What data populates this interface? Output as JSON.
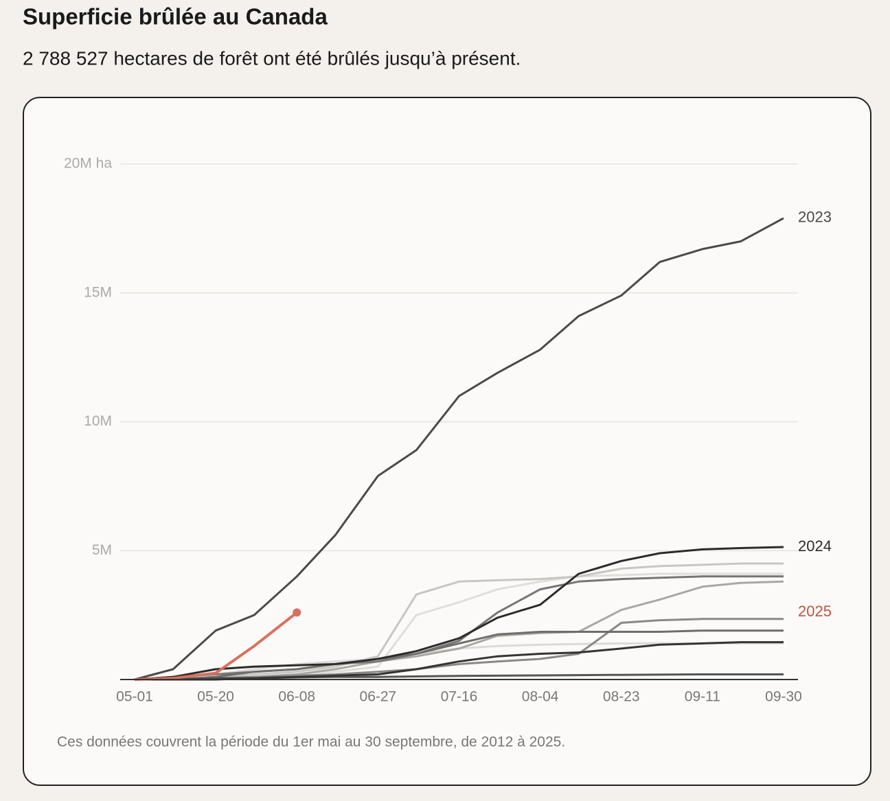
{
  "chart_data": {
    "type": "line",
    "title": "Superficie brûlée au Canada",
    "subtitle": "2 788 527 hectares de forêt ont été brûlés jusqu’à présent.",
    "note": "Ces données couvrent la période du 1er mai au 30 septembre, de 2012 à 2025.",
    "x": [
      "05-01",
      "05-10",
      "05-20",
      "05-29",
      "06-08",
      "06-17",
      "06-27",
      "07-06",
      "07-16",
      "07-25",
      "08-04",
      "08-13",
      "08-23",
      "09-01",
      "09-11",
      "09-20",
      "09-30"
    ],
    "xlim": [
      "05-01",
      "09-30"
    ],
    "xticks": [
      "05-01",
      "05-20",
      "06-08",
      "06-27",
      "07-16",
      "08-04",
      "08-23",
      "09-11",
      "09-30"
    ],
    "ylim": [
      0,
      20000000
    ],
    "yticks": [
      {
        "value": 5000000,
        "label": "5M"
      },
      {
        "value": 10000000,
        "label": "10M"
      },
      {
        "value": 15000000,
        "label": "15M"
      },
      {
        "value": 20000000,
        "label": "20M ha"
      }
    ],
    "grid": true,
    "series": [
      {
        "name": null,
        "color": "#e0dedb",
        "values": [
          0,
          0,
          50000,
          100000,
          200000,
          300000,
          500000,
          2500000,
          3000000,
          3500000,
          3800000,
          4000000,
          4050000,
          4100000,
          4100000,
          4100000,
          4100000
        ]
      },
      {
        "name": null,
        "color": "#c8c5c2",
        "values": [
          0,
          0,
          100000,
          200000,
          300000,
          500000,
          900000,
          3300000,
          3800000,
          3850000,
          3900000,
          4000000,
          4300000,
          4400000,
          4450000,
          4500000,
          4500000
        ]
      },
      {
        "name": null,
        "color": "#dcdad7",
        "values": [
          0,
          100000,
          200000,
          400000,
          600000,
          700000,
          800000,
          1000000,
          1200000,
          1300000,
          1350000,
          1380000,
          1400000,
          1400000,
          1400000,
          1400000,
          1400000
        ]
      },
      {
        "name": null,
        "color": "#a9a6a3",
        "values": [
          0,
          0,
          50000,
          100000,
          200000,
          400000,
          700000,
          900000,
          1200000,
          1700000,
          1800000,
          1850000,
          2700000,
          3100000,
          3600000,
          3750000,
          3800000
        ]
      },
      {
        "name": null,
        "color": "#8a8785",
        "values": [
          0,
          0,
          50000,
          100000,
          150000,
          200000,
          300000,
          400000,
          600000,
          700000,
          800000,
          1000000,
          2200000,
          2300000,
          2350000,
          2350000,
          2350000
        ]
      },
      {
        "name": null,
        "color": "#777573",
        "values": [
          0,
          100000,
          200000,
          300000,
          400000,
          600000,
          700000,
          1000000,
          1500000,
          2600000,
          3500000,
          3800000,
          3900000,
          3950000,
          4000000,
          4000000,
          4000000
        ]
      },
      {
        "name": null,
        "color": "#6f6c6a",
        "values": [
          0,
          0,
          100000,
          300000,
          400000,
          600000,
          800000,
          1000000,
          1400000,
          1750000,
          1850000,
          1850000,
          1850000,
          1850000,
          1900000,
          1900000,
          1900000
        ]
      },
      {
        "name": null,
        "color": "#555555",
        "values": [
          0,
          0,
          50000,
          50000,
          80000,
          100000,
          100000,
          120000,
          140000,
          150000,
          160000,
          170000,
          180000,
          190000,
          200000,
          200000,
          200000
        ]
      },
      {
        "name": null,
        "color": "#333333",
        "values": [
          0,
          0,
          0,
          50000,
          100000,
          150000,
          200000,
          400000,
          700000,
          900000,
          1000000,
          1050000,
          1200000,
          1350000,
          1400000,
          1450000,
          1450000
        ]
      },
      {
        "name": "2024",
        "color": "#2b2b2b",
        "values": [
          0,
          100000,
          400000,
          500000,
          550000,
          600000,
          800000,
          1100000,
          1600000,
          2400000,
          2900000,
          4100000,
          4600000,
          4900000,
          5050000,
          5100000,
          5140000
        ]
      },
      {
        "name": "2023",
        "color": "#4a4a4a",
        "values": [
          0,
          400000,
          1900000,
          2500000,
          4000000,
          5600000,
          7900000,
          8900000,
          11000000,
          11900000,
          12800000,
          14100000,
          14900000,
          16200000,
          16700000,
          17000000,
          17900000
        ]
      },
      {
        "name": "2025",
        "color": "#d9705e",
        "label_color": "#c0533f",
        "values": [
          0,
          50000,
          250000,
          1300000,
          2600000,
          null,
          null,
          null,
          null,
          null,
          null,
          null,
          null,
          null,
          null,
          null,
          null
        ]
      }
    ]
  }
}
